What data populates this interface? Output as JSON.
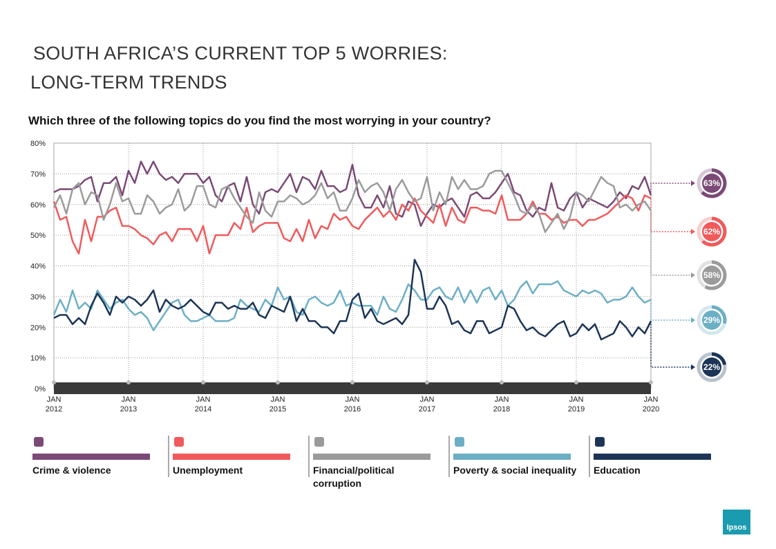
{
  "title_line1": "SOUTH AFRICA’S CURRENT TOP 5 WORRIES:",
  "title_line2": "LONG-TERM TRENDS",
  "logo": "Ipsos",
  "chart_data": {
    "type": "line",
    "title": "Which three of the following topics do you find the most worrying in your country?",
    "categories": [
      "JAN 2012",
      null,
      null,
      null,
      null,
      null,
      null,
      null,
      null,
      null,
      null,
      null,
      "JAN 2013",
      null,
      null,
      null,
      null,
      null,
      null,
      null,
      null,
      null,
      null,
      null,
      "JAN 2014",
      null,
      null,
      null,
      null,
      null,
      null,
      null,
      null,
      null,
      null,
      null,
      "JAN 2015",
      null,
      null,
      null,
      null,
      null,
      null,
      null,
      null,
      null,
      null,
      null,
      "JAN 2016",
      null,
      null,
      null,
      null,
      null,
      null,
      null,
      null,
      null,
      null,
      null,
      "JAN 2017",
      null,
      null,
      null,
      null,
      null,
      null,
      null,
      null,
      null,
      null,
      null,
      "JAN 2018",
      null,
      null,
      null,
      null,
      null,
      null,
      null,
      null,
      null,
      null,
      null,
      "JAN 2019",
      null,
      null,
      null,
      null,
      null,
      null,
      null,
      null,
      null,
      null,
      null,
      "JAN 2020"
    ],
    "ylim": [
      0,
      80
    ],
    "yticks": [
      {
        "value": 0,
        "label": "0%"
      },
      {
        "value": 10,
        "label": "10%"
      },
      {
        "value": 20,
        "label": "20%"
      },
      {
        "value": 30,
        "label": "30%"
      },
      {
        "value": 40,
        "label": "40%"
      },
      {
        "value": 50,
        "label": "50%"
      },
      {
        "value": 60,
        "label": "60%"
      },
      {
        "value": 70,
        "label": "70%"
      },
      {
        "value": 80,
        "label": "80%"
      }
    ],
    "grid": true,
    "series": [
      {
        "name": "Crime & violence",
        "color": "#7b4a76",
        "value_label": "63%",
        "values": [
          64,
          65,
          65,
          65,
          66,
          68,
          69,
          61,
          67,
          67,
          69,
          63,
          71,
          67,
          74,
          70,
          74,
          70,
          68,
          69,
          67,
          70,
          70,
          70,
          67,
          69,
          63,
          61,
          66,
          67,
          61,
          69,
          60,
          57,
          64,
          65,
          64,
          67,
          70,
          64,
          69,
          68,
          65,
          71,
          66,
          66,
          64,
          65,
          73,
          63,
          59,
          59,
          63,
          59,
          66,
          57,
          56,
          61,
          60,
          53,
          57,
          60,
          59,
          61,
          62,
          59,
          56,
          63,
          64,
          62,
          62,
          64,
          67,
          70,
          64,
          63,
          58,
          56,
          59,
          58,
          67,
          59,
          58,
          62,
          64,
          59,
          62,
          61,
          60,
          59,
          61,
          64,
          62,
          66,
          65,
          69,
          63
        ]
      },
      {
        "name": "Unemployment",
        "color": "#f05a5b",
        "value_label": "62%",
        "values": [
          61,
          55,
          56,
          48,
          44,
          55,
          48,
          56,
          56,
          58,
          59,
          53,
          53,
          52,
          50,
          49,
          47,
          50,
          51,
          48,
          52,
          52,
          52,
          48,
          53,
          44,
          50,
          50,
          50,
          54,
          52,
          59,
          51,
          53,
          54,
          54,
          54,
          49,
          48,
          52,
          48,
          55,
          49,
          53,
          52,
          57,
          55,
          56,
          53,
          52,
          55,
          57,
          59,
          56,
          58,
          55,
          60,
          58,
          62,
          58,
          56,
          54,
          60,
          53,
          59,
          55,
          54,
          59,
          59,
          58,
          58,
          57,
          63,
          55,
          55,
          55,
          57,
          61,
          57,
          57,
          55,
          56,
          54,
          55,
          55,
          53,
          55,
          55,
          56,
          57,
          59,
          61,
          63,
          62,
          58,
          63,
          62
        ]
      },
      {
        "name": "Financial/political corruption",
        "color": "#9b9b9b",
        "value_label": "58%",
        "values": [
          59,
          63,
          57,
          65,
          67,
          60,
          64,
          63,
          55,
          60,
          67,
          61,
          62,
          57,
          57,
          63,
          61,
          57,
          59,
          60,
          65,
          58,
          60,
          66,
          66,
          60,
          59,
          65,
          66,
          62,
          59,
          56,
          54,
          64,
          58,
          56,
          61,
          61,
          63,
          62,
          60,
          61,
          63,
          67,
          62,
          64,
          58,
          58,
          62,
          68,
          64,
          66,
          67,
          64,
          58,
          65,
          68,
          64,
          61,
          62,
          69,
          58,
          64,
          60,
          69,
          65,
          68,
          65,
          65,
          66,
          70,
          71,
          71,
          67,
          63,
          58,
          57,
          60,
          57,
          51,
          54,
          57,
          52,
          56,
          64,
          63,
          61,
          65,
          69,
          67,
          66,
          59,
          60,
          58,
          60,
          61,
          58
        ]
      },
      {
        "name": "Poverty & social inequality",
        "color": "#6cafc5",
        "value_label": "29%",
        "values": [
          24,
          29,
          25,
          32,
          26,
          28,
          26,
          32,
          29,
          26,
          28,
          29,
          26,
          24,
          25,
          23,
          19,
          22,
          25,
          28,
          29,
          24,
          22,
          22,
          23,
          24,
          22,
          22,
          22,
          23,
          29,
          27,
          26,
          25,
          29,
          27,
          33,
          29,
          30,
          25,
          24,
          29,
          30,
          28,
          27,
          28,
          32,
          27,
          28,
          27,
          27,
          27,
          24,
          30,
          26,
          25,
          29,
          34,
          32,
          29,
          29,
          32,
          33,
          30,
          29,
          33,
          28,
          32,
          28,
          32,
          33,
          29,
          32,
          27,
          29,
          33,
          35,
          31,
          34,
          34,
          34,
          35,
          32,
          31,
          30,
          32,
          31,
          32,
          31,
          28,
          29,
          29,
          30,
          33,
          30,
          28,
          29
        ]
      },
      {
        "name": "Education",
        "color": "#1c3557",
        "value_label": "22%",
        "values": [
          23,
          24,
          24,
          21,
          23,
          21,
          27,
          31,
          28,
          24,
          30,
          28,
          30,
          29,
          27,
          29,
          32,
          25,
          29,
          27,
          26,
          27,
          29,
          27,
          25,
          24,
          28,
          28,
          26,
          27,
          26,
          26,
          28,
          24,
          23,
          27,
          26,
          25,
          30,
          22,
          26,
          22,
          22,
          20,
          20,
          18,
          22,
          22,
          29,
          31,
          23,
          26,
          22,
          21,
          22,
          23,
          21,
          24,
          42,
          38,
          26,
          26,
          30,
          27,
          21,
          22,
          19,
          18,
          22,
          22,
          18,
          19,
          20,
          27,
          26,
          22,
          19,
          20,
          18,
          17,
          19,
          21,
          22,
          17,
          18,
          21,
          19,
          21,
          16,
          17,
          18,
          22,
          20,
          17,
          20,
          18,
          22
        ]
      }
    ]
  }
}
